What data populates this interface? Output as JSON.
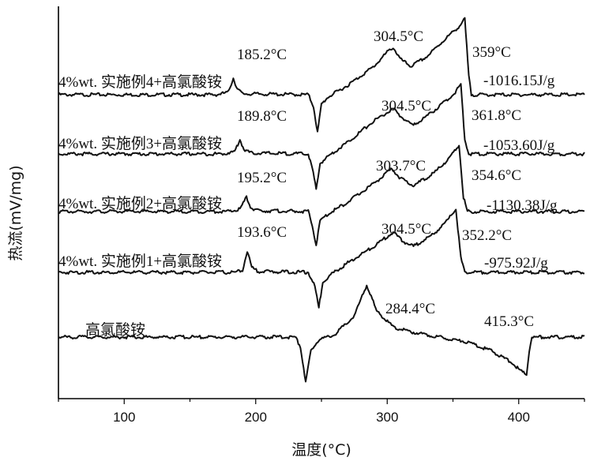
{
  "chart_data": {
    "type": "line",
    "xlabel": "温度(°C)",
    "ylabel": "热流(mV/mg)",
    "xlim": [
      50,
      450
    ],
    "xticks": [
      100,
      200,
      300,
      400
    ],
    "series": [
      {
        "name": "4%wt. 实施例4+高氯酸铵",
        "offset": 4,
        "points": [
          [
            50,
            0
          ],
          [
            170,
            0
          ],
          [
            179,
            0.05
          ],
          [
            183,
            0.35
          ],
          [
            186,
            0.12
          ],
          [
            190,
            0.02
          ],
          [
            240,
            0
          ],
          [
            244,
            -0.25
          ],
          [
            247,
            -0.8
          ],
          [
            250,
            -0.2
          ],
          [
            255,
            -0.05
          ],
          [
            270,
            0.2
          ],
          [
            290,
            0.6
          ],
          [
            300,
            0.9
          ],
          [
            304.5,
            1.0
          ],
          [
            310,
            0.75
          ],
          [
            318,
            0.6
          ],
          [
            330,
            0.8
          ],
          [
            345,
            1.2
          ],
          [
            355,
            1.45
          ],
          [
            359,
            1.6
          ],
          [
            362,
            0.4
          ],
          [
            364,
            0
          ],
          [
            450,
            0
          ]
        ],
        "annotations": [
          "185.2°C",
          "304.5°C",
          "359°C",
          "-1016.15J/g"
        ]
      },
      {
        "name": "4%wt. 实施例3+高氯酸铵",
        "offset": 3,
        "points": [
          [
            50,
            0
          ],
          [
            175,
            0
          ],
          [
            184,
            0.05
          ],
          [
            188,
            0.3
          ],
          [
            191,
            0.1
          ],
          [
            196,
            0.02
          ],
          [
            240,
            0
          ],
          [
            243,
            -0.3
          ],
          [
            246,
            -0.75
          ],
          [
            249,
            -0.2
          ],
          [
            255,
            -0.05
          ],
          [
            270,
            0.25
          ],
          [
            290,
            0.7
          ],
          [
            304.5,
            0.95
          ],
          [
            312,
            0.75
          ],
          [
            320,
            0.6
          ],
          [
            335,
            0.9
          ],
          [
            350,
            1.25
          ],
          [
            356,
            1.45
          ],
          [
            359,
            0.3
          ],
          [
            362,
            0
          ],
          [
            450,
            0
          ]
        ],
        "annotations": [
          "189.8°C",
          "304.5°C",
          "361.8°C",
          "-1053.60J/g"
        ]
      },
      {
        "name": "4%wt. 实施例2+高氯酸铵",
        "offset": 2,
        "points": [
          [
            50,
            0
          ],
          [
            180,
            0
          ],
          [
            188,
            0.05
          ],
          [
            193,
            0.3
          ],
          [
            196,
            0.1
          ],
          [
            200,
            0.02
          ],
          [
            240,
            0
          ],
          [
            243,
            -0.3
          ],
          [
            246,
            -0.7
          ],
          [
            249,
            -0.2
          ],
          [
            255,
            -0.05
          ],
          [
            270,
            0.2
          ],
          [
            290,
            0.6
          ],
          [
            303.7,
            0.9
          ],
          [
            310,
            0.7
          ],
          [
            320,
            0.55
          ],
          [
            335,
            0.8
          ],
          [
            348,
            1.15
          ],
          [
            354.6,
            1.4
          ],
          [
            358,
            0.3
          ],
          [
            361,
            0
          ],
          [
            450,
            0
          ]
        ],
        "annotations": [
          "195.2°C",
          "303.7°C",
          "354.6°C",
          "-1130.38J/g"
        ]
      },
      {
        "name": "4%wt. 实施例1+高氯酸铵",
        "offset": 1,
        "points": [
          [
            50,
            0
          ],
          [
            185,
            0
          ],
          [
            190,
            0.05
          ],
          [
            193.6,
            0.45
          ],
          [
            197,
            0.1
          ],
          [
            202,
            0.02
          ],
          [
            240,
            0
          ],
          [
            245,
            -0.3
          ],
          [
            248,
            -0.75
          ],
          [
            251,
            -0.2
          ],
          [
            257,
            -0.05
          ],
          [
            270,
            0.2
          ],
          [
            290,
            0.55
          ],
          [
            304.5,
            0.85
          ],
          [
            312,
            0.65
          ],
          [
            320,
            0.55
          ],
          [
            335,
            0.8
          ],
          [
            346,
            1.1
          ],
          [
            352.2,
            1.35
          ],
          [
            356,
            0.3
          ],
          [
            359,
            0
          ],
          [
            450,
            0
          ]
        ],
        "annotations": [
          "193.6°C",
          "304.5°C",
          "352.2°C",
          "-975.92J/g"
        ]
      },
      {
        "name": "高氯酸铵",
        "offset": 0,
        "points": [
          [
            50,
            0
          ],
          [
            230,
            0
          ],
          [
            234,
            -0.2
          ],
          [
            238,
            -0.95
          ],
          [
            242,
            -0.3
          ],
          [
            248,
            -0.05
          ],
          [
            260,
            0.05
          ],
          [
            275,
            0.45
          ],
          [
            284.4,
            1.1
          ],
          [
            292,
            0.55
          ],
          [
            305,
            0.2
          ],
          [
            320,
            0.1
          ],
          [
            340,
            0
          ],
          [
            360,
            -0.1
          ],
          [
            380,
            -0.3
          ],
          [
            395,
            -0.55
          ],
          [
            403,
            -0.75
          ],
          [
            406,
            -0.78
          ],
          [
            408,
            -0.3
          ],
          [
            410,
            0
          ],
          [
            450,
            0
          ]
        ],
        "annotations": [
          "284.4°C",
          "415.3°C"
        ]
      }
    ]
  }
}
